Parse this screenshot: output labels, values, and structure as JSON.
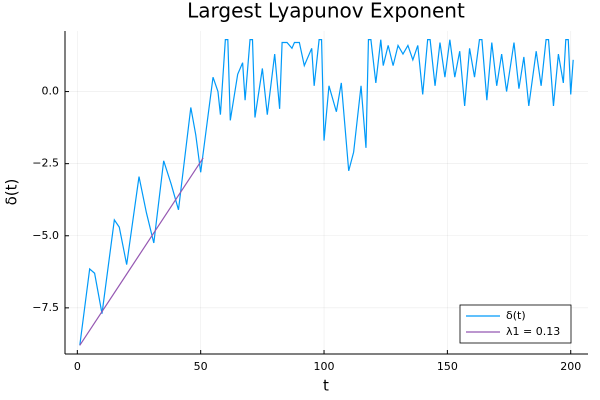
{
  "chart_data": {
    "type": "line",
    "title": "Largest Lyapunov Exponent",
    "x_label": "t",
    "y_label": "δ(t)",
    "xlim": [
      -5,
      207
    ],
    "ylim": [
      -9.1,
      2.1
    ],
    "xticks": [
      0,
      50,
      100,
      150,
      200
    ],
    "yticks": [
      {
        "value": 0,
        "label": "0.0"
      },
      {
        "value": -2.5,
        "label": "−2.5"
      },
      {
        "value": -5,
        "label": "−5.0"
      },
      {
        "value": -7.5,
        "label": "−7.5"
      }
    ],
    "grid": true,
    "legend": "bottom-right",
    "series": [
      {
        "name": "δ(t)",
        "color": "#009af9",
        "x": [
          1,
          5,
          7,
          10,
          15,
          17,
          20,
          25,
          28,
          31,
          35,
          38,
          41,
          46,
          48,
          50,
          55,
          57,
          58,
          60,
          61,
          62,
          65,
          67,
          68,
          70,
          71,
          72,
          75,
          77,
          80,
          82,
          83,
          85,
          87,
          88,
          90,
          92,
          95,
          96,
          98,
          99,
          100,
          102,
          105,
          107,
          110,
          112,
          115,
          117,
          118,
          119,
          121,
          123,
          124,
          126,
          128,
          130,
          132,
          134,
          136,
          138,
          140,
          142,
          143,
          145,
          147,
          149,
          151,
          153,
          155,
          157,
          159,
          161,
          163,
          164,
          166,
          168,
          170,
          172,
          174,
          177,
          179,
          181,
          183,
          186,
          188,
          190,
          191,
          193,
          195,
          197,
          198,
          199,
          200,
          201
        ],
        "values": [
          -8.8,
          -6.15,
          -6.3,
          -7.7,
          -4.45,
          -4.7,
          -6.0,
          -2.95,
          -4.2,
          -5.25,
          -2.4,
          -3.2,
          -4.1,
          -0.55,
          -1.5,
          -2.8,
          0.5,
          0.0,
          -0.8,
          1.8,
          1.8,
          -1.0,
          0.6,
          1.0,
          -0.3,
          1.8,
          1.8,
          -0.9,
          0.8,
          -0.8,
          1.3,
          -0.6,
          1.7,
          1.7,
          1.5,
          1.7,
          1.7,
          0.9,
          1.5,
          0.2,
          1.8,
          1.8,
          -1.7,
          0.2,
          -0.7,
          0.3,
          -2.75,
          -2.1,
          0.2,
          -1.95,
          1.8,
          1.8,
          0.3,
          1.8,
          0.9,
          1.6,
          0.9,
          1.6,
          1.3,
          1.6,
          1.1,
          1.6,
          -0.1,
          1.8,
          1.8,
          0.2,
          1.7,
          0.5,
          1.8,
          0.5,
          1.4,
          -0.5,
          1.5,
          0.5,
          1.8,
          1.8,
          -0.3,
          1.7,
          0.2,
          1.3,
          0.0,
          1.7,
          0.1,
          1.2,
          -0.5,
          1.4,
          0.2,
          1.8,
          1.8,
          -0.5,
          1.3,
          0.3,
          1.8,
          1.8,
          -0.1,
          1.1
        ]
      },
      {
        "name": "λ1 = 0.13",
        "color": "#9558b2",
        "x": [
          1,
          51
        ],
        "values": [
          -8.8,
          -2.3
        ]
      }
    ]
  }
}
